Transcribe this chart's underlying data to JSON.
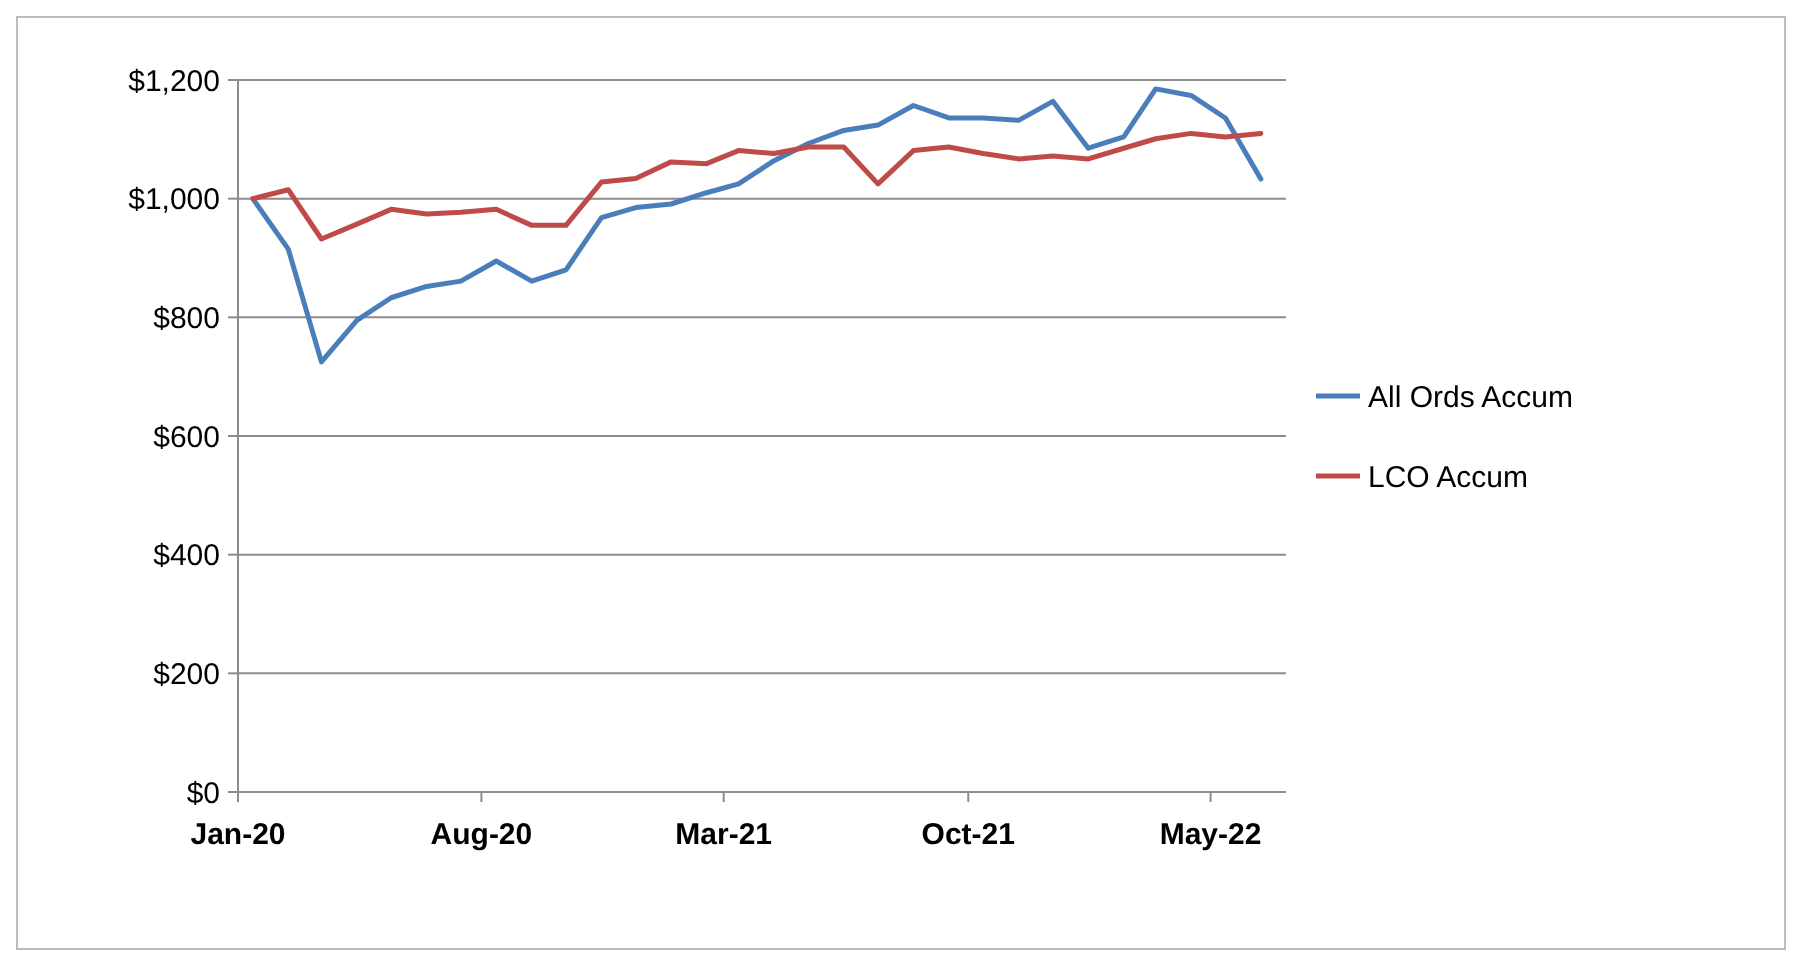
{
  "chart_data": {
    "type": "line",
    "x": [
      "2020-01-14",
      "2020-02-14",
      "2020-03-14",
      "2020-04-14",
      "2020-05-14",
      "2020-06-14",
      "2020-07-14",
      "2020-08-14",
      "2020-09-14",
      "2020-10-14",
      "2020-11-14",
      "2020-12-14",
      "2021-01-14",
      "2021-02-14",
      "2021-03-14",
      "2021-04-14",
      "2021-05-14",
      "2021-06-14",
      "2021-07-14",
      "2021-08-14",
      "2021-09-14",
      "2021-10-14",
      "2021-11-14",
      "2021-12-14",
      "2022-01-14",
      "2022-02-14",
      "2022-03-14",
      "2022-04-14",
      "2022-05-14",
      "2022-06-14"
    ],
    "series": [
      {
        "name": "All Ords Accum",
        "color": "#4a7ebb",
        "values": [
          1000,
          915,
          725,
          795,
          833,
          852,
          861,
          895,
          861,
          880,
          968,
          985,
          991,
          1010,
          1025,
          1064,
          1093,
          1115,
          1124,
          1157,
          1136,
          1136,
          1132,
          1164,
          1085,
          1104,
          1185,
          1174,
          1136,
          1033
        ]
      },
      {
        "name": "LCO Accum",
        "color": "#be4b48",
        "values": [
          1000,
          1015,
          932,
          957,
          982,
          974,
          977,
          982,
          955,
          955,
          1028,
          1034,
          1062,
          1059,
          1081,
          1076,
          1087,
          1087,
          1025,
          1081,
          1087,
          1076,
          1067,
          1072,
          1067,
          1085,
          1101,
          1110,
          1104,
          1110
        ]
      }
    ],
    "xlim": [
      "2020-01-01",
      "2022-07-06"
    ],
    "xticks": [
      {
        "value": "2020-01-01",
        "label": "Jan-20"
      },
      {
        "value": "2020-08-01",
        "label": "Aug-20"
      },
      {
        "value": "2021-03-01",
        "label": "Mar-21"
      },
      {
        "value": "2021-10-01",
        "label": "Oct-21"
      },
      {
        "value": "2022-05-01",
        "label": "May-22"
      }
    ],
    "ylim": [
      0,
      1200
    ],
    "yticks": [
      {
        "value": 0,
        "label": "$0"
      },
      {
        "value": 200,
        "label": "$200"
      },
      {
        "value": 400,
        "label": "$400"
      },
      {
        "value": 600,
        "label": "$600"
      },
      {
        "value": 800,
        "label": "$800"
      },
      {
        "value": 1000,
        "label": "$1,000"
      },
      {
        "value": 1200,
        "label": "$1,200"
      }
    ],
    "grid": "y",
    "legend": "right",
    "marker": "none",
    "line_style": "solid"
  }
}
